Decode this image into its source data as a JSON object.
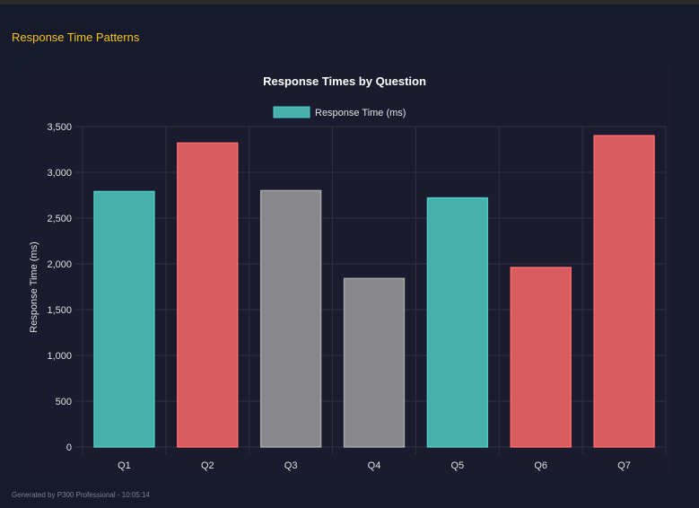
{
  "page": {
    "section_title": "Response Time Patterns",
    "footer": "Generated by P300 Professional - 10:05:14"
  },
  "chart_data": {
    "type": "bar",
    "title": "Response Times by Question",
    "categories": [
      "Q1",
      "Q2",
      "Q3",
      "Q4",
      "Q5",
      "Q6",
      "Q7"
    ],
    "series": [
      {
        "name": "Response Time (ms)",
        "values": [
          2790,
          3320,
          2800,
          1840,
          2720,
          1960,
          3400
        ]
      }
    ],
    "bar_colors": [
      "#45b1aa",
      "#d65c60",
      "#88878c",
      "#88878c",
      "#45b1aa",
      "#d65c60",
      "#d65c60"
    ],
    "bar_border_colors": [
      "#4ecdc4",
      "#ff6b6b",
      "#a8a8a8",
      "#a8a8a8",
      "#4ecdc4",
      "#ff6b6b",
      "#ff6b6b"
    ],
    "legend_color": "#45b1aa",
    "legend_placement": "top",
    "xlabel": "",
    "ylabel": "Response Time (ms)",
    "ylim": [
      0,
      3500
    ],
    "yticks": [
      "0",
      "500",
      "1,000",
      "1,500",
      "2,000",
      "2,500",
      "3,000",
      "3,500"
    ],
    "grid": true
  }
}
